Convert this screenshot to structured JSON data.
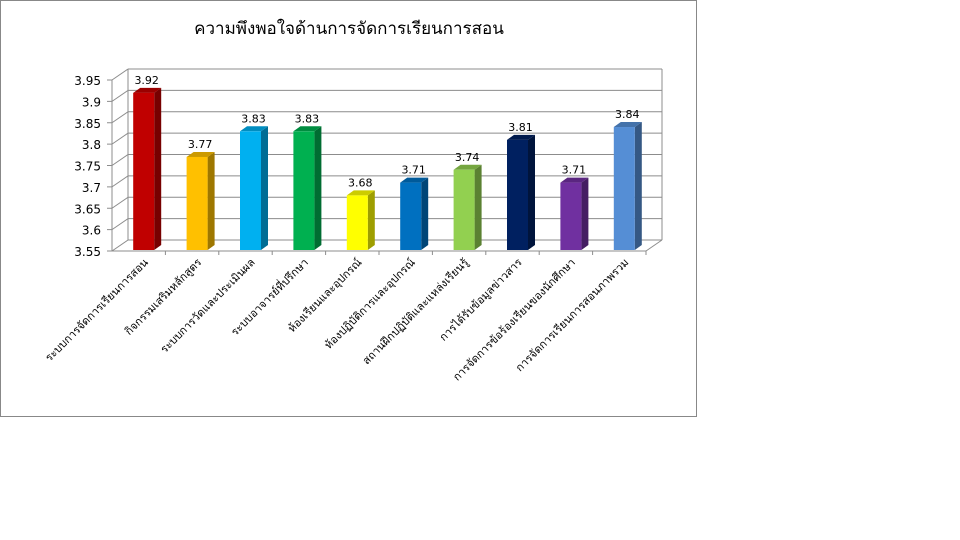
{
  "chart_data": {
    "type": "bar",
    "title": "ความพึงพอใจด้านการจัดการเรียนการสอน",
    "xlabel": "",
    "ylabel": "",
    "ylim": [
      3.55,
      3.95
    ],
    "yticks": [
      "3.55",
      "3.6",
      "3.65",
      "3.7",
      "3.75",
      "3.8",
      "3.85",
      "3.9",
      "3.95"
    ],
    "grid": true,
    "style": "3d-column",
    "categories": [
      "ระบบการจัดการเรียนการสอน",
      "กิจกรรมเสริมหลักสูตร",
      "ระบบการวัดและประเมินผล",
      "ระบบอาจารย์ที่ปรึกษา",
      "ห้องเรียนและอุปกรณ์",
      "ห้องปฏิบัติการและอุปกรณ์",
      "สถานฝึกปฏิบัติและแหล่งเรียนรู้",
      "การได้รับข้อมูลข่าวสาร",
      "การจัดการข้อร้องเรียนของนักศึกษา",
      "การจัดการเรียนการสอนภาพรวม"
    ],
    "values": [
      3.92,
      3.77,
      3.83,
      3.83,
      3.68,
      3.71,
      3.74,
      3.81,
      3.71,
      3.84
    ],
    "data_labels": [
      "3.92",
      "3.77",
      "3.83",
      "3.83",
      "3.68",
      "3.71",
      "3.74",
      "3.81",
      "3.71",
      "3.84"
    ],
    "colors": [
      "#c00000",
      "#ffc000",
      "#00b0f0",
      "#00b050",
      "#ffff00",
      "#0070c0",
      "#92d050",
      "#002060",
      "#7030a0",
      "#558ed5"
    ]
  }
}
